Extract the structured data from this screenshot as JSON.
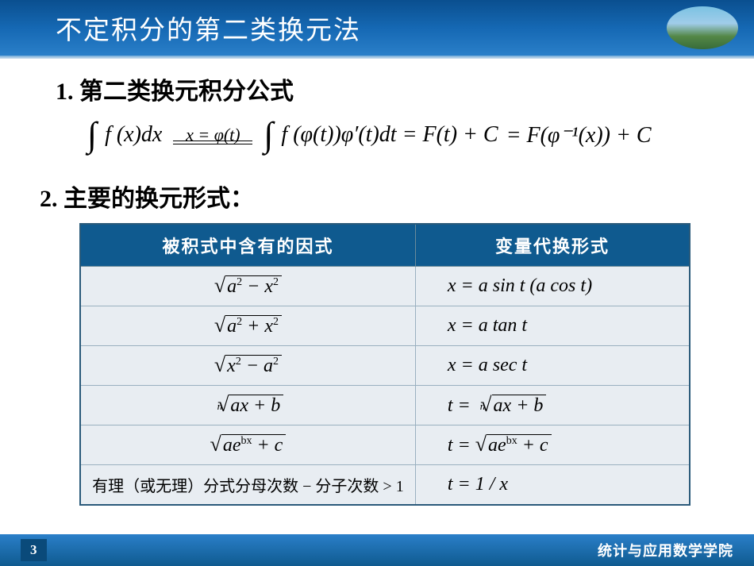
{
  "header": {
    "title": "不定积分的第二类换元法"
  },
  "section1": {
    "label": "1.  第二类换元积分公式",
    "formula": {
      "lhs_pre": "∫",
      "lhs": "f (x)dx",
      "sub_top": "x = φ(t)",
      "mid_pre": "∫",
      "mid": "f (φ(t))φ′(t)dt = F(t) + C",
      "rhs": " = F(φ⁻¹(x)) + C"
    }
  },
  "section2": {
    "label": "2. 主要的换元形式："
  },
  "table": {
    "headers": [
      "被积式中含有的因式",
      "变量代换形式"
    ],
    "rows": [
      {
        "c1": {
          "type": "sqrt",
          "body": "a² − x²"
        },
        "c2": "x = a sin t (a cos t)"
      },
      {
        "c1": {
          "type": "sqrt",
          "body": "a² + x²"
        },
        "c2": "x = a tan t"
      },
      {
        "c1": {
          "type": "sqrt",
          "body": "x² − a²"
        },
        "c2": "x = a sec t"
      },
      {
        "c1": {
          "type": "nroot",
          "n": "n",
          "body": "ax + b"
        },
        "c2": {
          "type": "nroot",
          "pre": "t = ",
          "n": "n",
          "body": "ax + b"
        }
      },
      {
        "c1": {
          "type": "sqrt",
          "body": "aeᵇˣ + c"
        },
        "c2": {
          "type": "sqrt",
          "pre": "t = ",
          "body": "aeᵇˣ + c"
        }
      },
      {
        "c1": {
          "type": "text",
          "body": "有理（或无理）分式分母次数 − 分子次数 > 1"
        },
        "c2": "t = 1 / x"
      }
    ]
  },
  "footer": {
    "page": "3",
    "dept": "统计与应用数学学院"
  },
  "colors": {
    "header_grad_top": "#0a4f8f",
    "header_grad_bot": "#2a7fc9",
    "th_bg": "#0f5a8f",
    "td_bg": "#e8edf2",
    "border": "#9ab0c0"
  }
}
